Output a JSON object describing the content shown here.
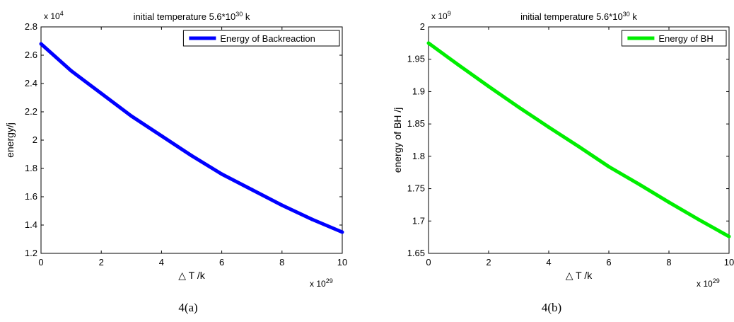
{
  "chart_data": [
    {
      "type": "line",
      "title": "initial temperature 5.6*10",
      "title_exponent": "30",
      "title_suffix": " k",
      "xlabel": "△ T  /k",
      "ylabel": "energy/j",
      "x_multiplier": "x 10",
      "x_multiplier_exponent": "29",
      "y_multiplier": "x 10",
      "y_multiplier_exponent": "4",
      "xlim": [
        0,
        10
      ],
      "ylim": [
        1.2,
        2.8
      ],
      "xticks": [
        "0",
        "2",
        "4",
        "6",
        "8",
        "10"
      ],
      "yticks": [
        "1.2",
        "1.4",
        "1.6",
        "1.8",
        "2",
        "2.2",
        "2.4",
        "2.6",
        "2.8"
      ],
      "grid": false,
      "legend_position": "top-right",
      "series": [
        {
          "name": "Energy of Backreaction",
          "color": "#0000ff",
          "x": [
            0,
            1,
            2,
            3,
            4,
            5,
            6,
            7,
            8,
            9,
            10
          ],
          "y": [
            2.68,
            2.49,
            2.33,
            2.17,
            2.03,
            1.89,
            1.76,
            1.65,
            1.54,
            1.44,
            1.35
          ]
        }
      ],
      "caption": "4(a)"
    },
    {
      "type": "line",
      "title": "initial temperature 5.6*10",
      "title_exponent": "30",
      "title_suffix": " k",
      "xlabel": "△ T  /k",
      "ylabel": "energy of BH /j",
      "x_multiplier": "x 10",
      "x_multiplier_exponent": "29",
      "y_multiplier": "x 10",
      "y_multiplier_exponent": "9",
      "xlim": [
        0,
        10
      ],
      "ylim": [
        1.65,
        2.0
      ],
      "xticks": [
        "0",
        "2",
        "4",
        "6",
        "8",
        "10"
      ],
      "yticks": [
        "1.65",
        "1.7",
        "1.75",
        "1.8",
        "1.85",
        "1.9",
        "1.95",
        "2"
      ],
      "grid": false,
      "legend_position": "top-right",
      "series": [
        {
          "name": "Energy of BH",
          "color": "#00ee00",
          "x": [
            0,
            1,
            2,
            3,
            4,
            5,
            6,
            7,
            8,
            9,
            10
          ],
          "y": [
            1.975,
            1.941,
            1.908,
            1.876,
            1.845,
            1.815,
            1.784,
            1.757,
            1.729,
            1.702,
            1.676
          ]
        }
      ],
      "caption": "4(b)"
    }
  ]
}
